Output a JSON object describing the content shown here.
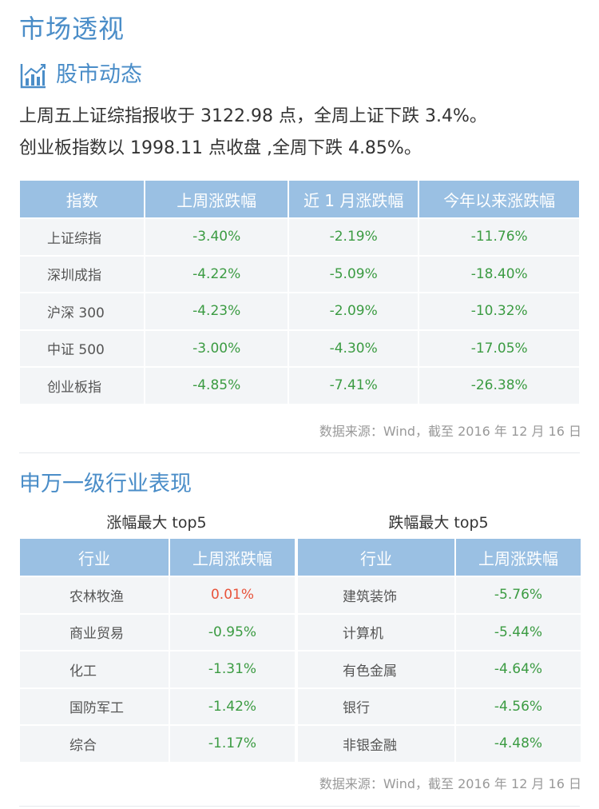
{
  "page_title": "市场透视",
  "section1": {
    "title": "股市动态",
    "summary_line1": "上周五上证综指报收于 3122.98 点，全周上证下跌 3.4%。",
    "summary_line2": "创业板指数以 1998.11 点收盘 ,全周下跌 4.85%。"
  },
  "index_table": {
    "headers": [
      "指数",
      "上周涨跌幅",
      "近 1 月涨跌幅",
      "今年以来涨跌幅"
    ],
    "rows": [
      {
        "name": "上证综指",
        "week": "-3.40%",
        "month": "-2.19%",
        "ytd": "-11.76%"
      },
      {
        "name": "深圳成指",
        "week": "-4.22%",
        "month": "-5.09%",
        "ytd": "-18.40%"
      },
      {
        "name": "沪深 300",
        "week": "-4.23%",
        "month": "-2.09%",
        "ytd": "-10.32%"
      },
      {
        "name": "中证 500",
        "week": "-3.00%",
        "month": "-4.30%",
        "ytd": "-17.05%"
      },
      {
        "name": "创业板指",
        "week": "-4.85%",
        "month": "-7.41%",
        "ytd": "-26.38%"
      }
    ]
  },
  "source1": "数据来源：Wind，截至 2016 年 12 月 16 日",
  "section2": {
    "title": "申万一级行业表现",
    "left_caption": "涨幅最大 top5",
    "right_caption": "跌幅最大 top5",
    "headers": [
      "行业",
      "上周涨跌幅"
    ],
    "left_rows": [
      {
        "name": "农林牧渔",
        "change": "0.01%",
        "dir": "up"
      },
      {
        "name": "商业贸易",
        "change": "-0.95%",
        "dir": "down"
      },
      {
        "name": "化工",
        "change": "-1.31%",
        "dir": "down"
      },
      {
        "name": "国防军工",
        "change": "-1.42%",
        "dir": "down"
      },
      {
        "name": "综合",
        "change": "-1.17%",
        "dir": "down"
      }
    ],
    "right_rows": [
      {
        "name": "建筑装饰",
        "change": "-5.76%",
        "dir": "down"
      },
      {
        "name": "计算机",
        "change": "-5.44%",
        "dir": "down"
      },
      {
        "name": "有色金属",
        "change": "-4.64%",
        "dir": "down"
      },
      {
        "name": "银行",
        "change": "-4.56%",
        "dir": "down"
      },
      {
        "name": "非银金融",
        "change": "-4.48%",
        "dir": "down"
      }
    ]
  },
  "source2": "数据来源：Wind，截至 2016 年 12 月 16 日",
  "colors": {
    "accent": "#4a8dc8",
    "header_bg": "#9ac0e3",
    "cell_bg": "#f3f5f7",
    "down": "#3b9b42",
    "up": "#e8533b"
  },
  "icons": {
    "section1": "bar-chart-icon"
  }
}
